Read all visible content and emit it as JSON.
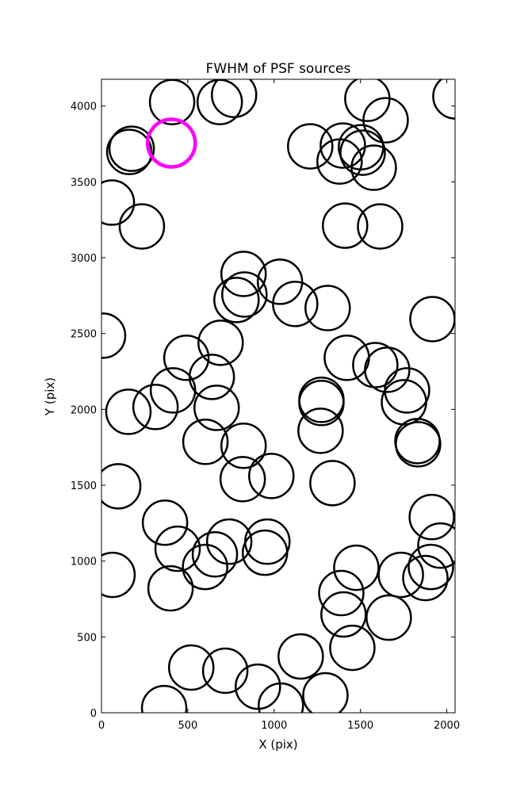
{
  "chart_data": {
    "type": "scatter",
    "title": "FWHM of PSF sources",
    "x_label": "X (pix)",
    "y_label": "Y (pix)",
    "xlim": [
      0,
      2048
    ],
    "ylim": [
      0,
      4176
    ],
    "xticks": [
      0,
      500,
      1000,
      1500,
      2000
    ],
    "yticks": [
      0,
      500,
      1000,
      1500,
      2000,
      2500,
      3000,
      3500,
      4000
    ],
    "series": [
      {
        "color": "#000000",
        "x": [
          409,
          685,
          768,
          175,
          161,
          60,
          234,
          1540,
          1646,
          2050,
          1209,
          1398,
          1503,
          1513,
          1379,
          1577,
          1411,
          1614,
          823,
          828,
          782,
          1034,
          1122,
          1310,
          1917,
          9,
          690,
          492,
          639,
          414,
          313,
          156,
          667,
          1421,
          1586,
          1655,
          1770,
          1752,
          1274,
          1274,
          1269,
          602,
          823,
          1830,
          1834,
          818,
          984,
          1338,
          97,
          368,
          1913,
          1963,
          740,
          961,
          947,
          441,
          657,
          600,
          64,
          400,
          1476,
          1908,
          1876,
          1734,
          1389,
          1402,
          1664,
          1453,
          1154,
          520,
          717,
          906,
          1039,
          1297,
          363
        ],
        "values": [
          4026,
          4026,
          4073,
          3718,
          3697,
          3363,
          3206,
          4047,
          3906,
          4063,
          3734,
          3739,
          3728,
          3692,
          3634,
          3593,
          3211,
          3206,
          2893,
          2757,
          2721,
          2841,
          2695,
          2668,
          2595,
          2486,
          2439,
          2340,
          2214,
          2125,
          2016,
          1984,
          2010,
          2340,
          2292,
          2261,
          2125,
          2047,
          2063,
          2042,
          1859,
          1786,
          1760,
          1791,
          1770,
          1540,
          1561,
          1514,
          1493,
          1253,
          1290,
          1102,
          1128,
          1128,
          1055,
          1081,
          1044,
          961,
          909,
          820,
          956,
          961,
          888,
          909,
          789,
          648,
          627,
          428,
          371,
          298,
          277,
          172,
          47,
          115,
          31
        ]
      },
      {
        "color": "#ff00ff",
        "x": [
          405
        ],
        "values": [
          3755
        ]
      }
    ]
  }
}
